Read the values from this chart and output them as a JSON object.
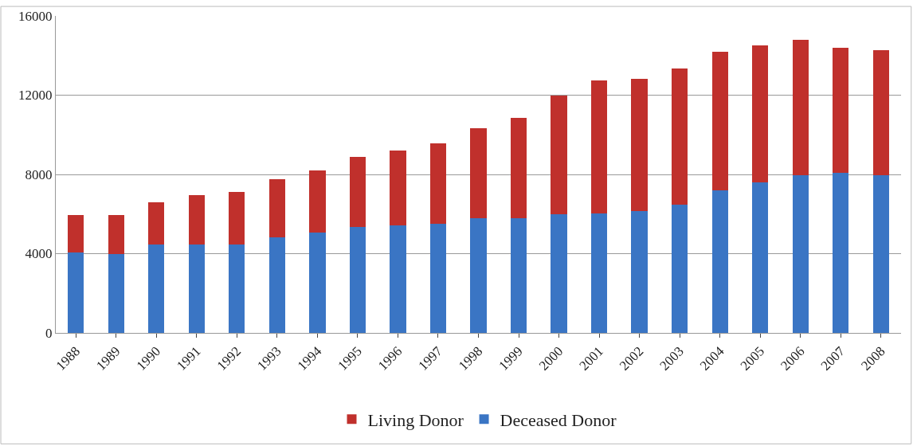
{
  "chart_data": {
    "type": "bar",
    "stacked": true,
    "categories": [
      "1988",
      "1989",
      "1990",
      "1991",
      "1992",
      "1993",
      "1994",
      "1995",
      "1996",
      "1997",
      "1998",
      "1999",
      "2000",
      "2001",
      "2002",
      "2003",
      "2004",
      "2005",
      "2006",
      "2007",
      "2008"
    ],
    "series": [
      {
        "name": "Deceased Donor",
        "color": "#3a75c4",
        "values": [
          4070,
          3990,
          4470,
          4470,
          4470,
          4820,
          5050,
          5350,
          5420,
          5500,
          5800,
          5800,
          5980,
          6050,
          6170,
          6480,
          7180,
          7580,
          7970,
          8090,
          7940
        ]
      },
      {
        "name": "Living Donor",
        "color": "#c0302c",
        "values": [
          1880,
          1960,
          2140,
          2500,
          2650,
          2950,
          3160,
          3550,
          3770,
          4060,
          4550,
          5040,
          5990,
          6680,
          6660,
          6850,
          7010,
          6950,
          6820,
          6320,
          6320
        ]
      }
    ],
    "ylim": [
      0,
      16000
    ],
    "yticks": [
      0,
      4000,
      8000,
      12000,
      16000
    ],
    "grid": "y",
    "legend": "bottom"
  }
}
